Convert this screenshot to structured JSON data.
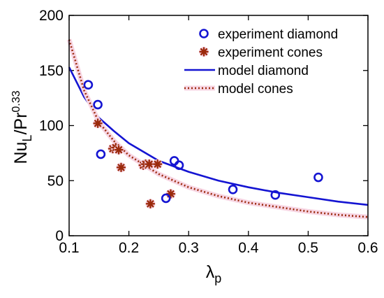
{
  "chart_data": {
    "type": "scatter",
    "xlabel": "λ",
    "xlabel_sub": "p",
    "ylabel": "Nu",
    "ylabel_sub": "L",
    "ylabel_rest": "/Pr",
    "ylabel_sup": "0.33",
    "xlim": [
      0.1,
      0.6
    ],
    "ylim": [
      0,
      200
    ],
    "xticks": [
      0.1,
      0.2,
      0.3,
      0.4,
      0.5,
      0.6
    ],
    "xtick_labels": [
      "0.1",
      "0.2",
      "0.3",
      "0.4",
      "0.5",
      "0.6"
    ],
    "yticks": [
      0,
      50,
      100,
      150,
      200
    ],
    "ytick_labels": [
      "0",
      "50",
      "100",
      "150",
      "200"
    ],
    "grid": false,
    "legend_position": "top-right",
    "colors": {
      "diamond": "#1414d2",
      "cones": "#9b2a0c"
    },
    "series": [
      {
        "name": "experiment diamond",
        "kind": "markers",
        "marker": "circle",
        "color": "#1414d2",
        "x": [
          0.132,
          0.148,
          0.153,
          0.262,
          0.276,
          0.284,
          0.374,
          0.445,
          0.517
        ],
        "y": [
          137,
          119,
          74,
          34,
          68,
          64,
          42,
          37,
          53
        ]
      },
      {
        "name": "experiment cones",
        "kind": "markers",
        "marker": "asterisk",
        "color": "#9b2a0c",
        "x": [
          0.148,
          0.173,
          0.178,
          0.183,
          0.187,
          0.224,
          0.228,
          0.234,
          0.236,
          0.27,
          0.248
        ],
        "y": [
          102,
          79,
          80,
          78,
          62,
          64,
          65,
          65,
          29,
          38,
          65
        ]
      },
      {
        "name": "model diamond",
        "kind": "line",
        "style": "solid",
        "color": "#1414d2",
        "x": [
          0.1,
          0.125,
          0.15,
          0.175,
          0.2,
          0.25,
          0.3,
          0.35,
          0.4,
          0.45,
          0.5,
          0.55,
          0.6
        ],
        "y": [
          153,
          126,
          107,
          95,
          84,
          68,
          58,
          50,
          44,
          39,
          35,
          31,
          28
        ]
      },
      {
        "name": "model cones",
        "kind": "line",
        "style": "dotted",
        "color": "#9b2a0c",
        "x": [
          0.1,
          0.125,
          0.15,
          0.175,
          0.2,
          0.25,
          0.3,
          0.35,
          0.4,
          0.45,
          0.5,
          0.55,
          0.6
        ],
        "y": [
          178,
          132,
          103,
          86,
          73,
          56,
          44,
          36,
          30,
          26,
          22,
          19,
          17
        ]
      }
    ]
  }
}
